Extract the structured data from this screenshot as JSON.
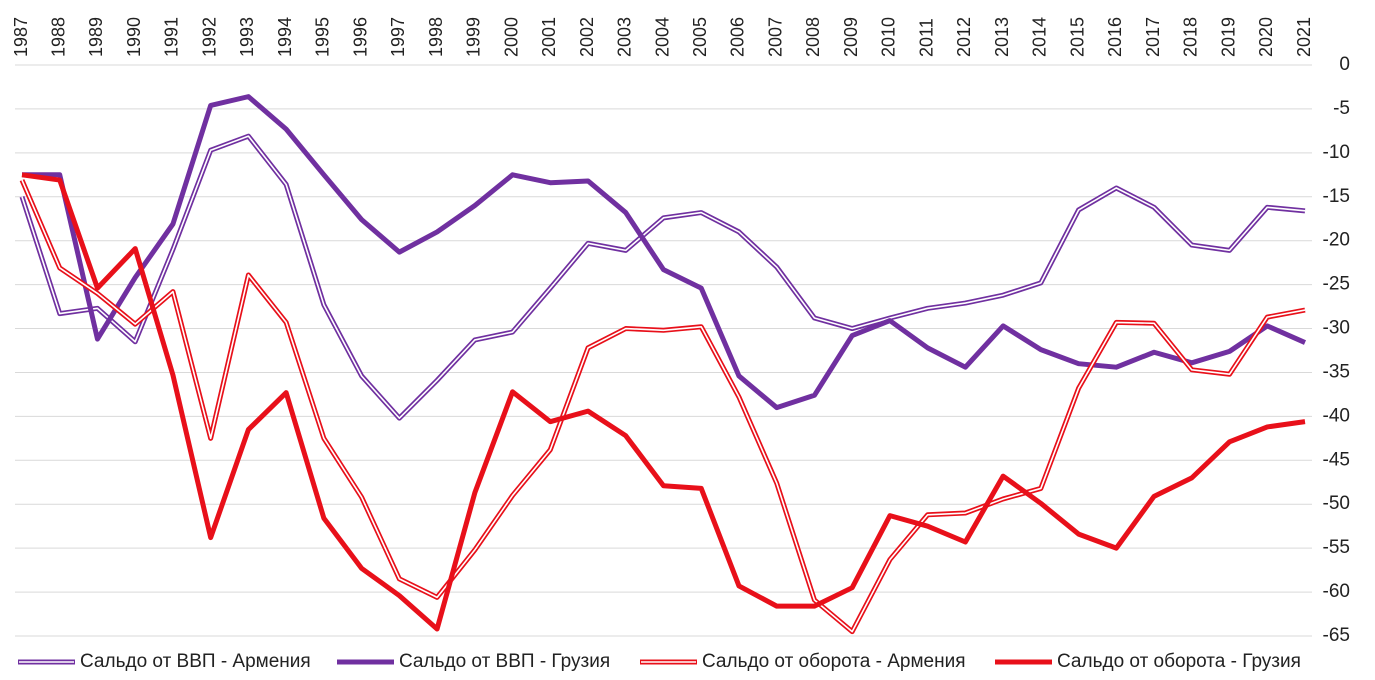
{
  "chart_data": {
    "type": "line",
    "x": [
      1987,
      1988,
      1989,
      1990,
      1991,
      1992,
      1993,
      1994,
      1995,
      1996,
      1997,
      1998,
      1999,
      2000,
      2001,
      2002,
      2003,
      2004,
      2005,
      2006,
      2007,
      2008,
      2009,
      2010,
      2011,
      2012,
      2013,
      2014,
      2015,
      2016,
      2017,
      2018,
      2019,
      2020,
      2021
    ],
    "series": [
      {
        "name": "Сальдо от ВВП - Армения",
        "color": "#7030a0",
        "double": true,
        "values": [
          -15,
          -28.3,
          -27.7,
          -31.5,
          -21,
          -9.7,
          -8.1,
          -13.6,
          -27.3,
          -35.4,
          -40.2,
          -35.9,
          -31.3,
          -30.4,
          -25.4,
          -20.3,
          -21.1,
          -17.4,
          -16.8,
          -19,
          -23,
          -28.8,
          -30,
          -28.8,
          -27.7,
          -27.1,
          -26.2,
          -24.8,
          -16.5,
          -14,
          -16.2,
          -20.5,
          -21.1,
          -16.2,
          -16.6
        ]
      },
      {
        "name": "Сальдо от ВВП - Грузия",
        "color": "#7030a0",
        "double": false,
        "values": [
          -12.5,
          -12.5,
          -31.2,
          -24.2,
          -18.1,
          -4.6,
          -3.6,
          -7.3,
          -12.5,
          -17.6,
          -21.3,
          -19,
          -16,
          -12.5,
          -13.4,
          -13.2,
          -16.8,
          -23.3,
          -25.4,
          -35.4,
          -39,
          -37.6,
          -30.8,
          -29.1,
          -32.2,
          -34.4,
          -29.7,
          -32.4,
          -34,
          -34.4,
          -32.7,
          -33.9,
          -32.6,
          -29.7,
          -31.6
        ]
      },
      {
        "name": "Сальдо от оборота - Армения",
        "color": "#e8101a",
        "double": true,
        "values": [
          -13.1,
          -23.1,
          -26,
          -29.5,
          -25.8,
          -42.5,
          -23.9,
          -29.3,
          -42.5,
          -49.2,
          -58.5,
          -60.6,
          -55.2,
          -49,
          -43.8,
          -32.2,
          -30,
          -30.2,
          -29.8,
          -37.8,
          -47.6,
          -60.9,
          -64.5,
          -56.3,
          -51.2,
          -51,
          -49.4,
          -48.2,
          -36.8,
          -29.3,
          -29.4,
          -34.7,
          -35.2,
          -28.7,
          -27.9
        ]
      },
      {
        "name": "Сальдо от оборота - Грузия",
        "color": "#e8101a",
        "double": false,
        "values": [
          -12.5,
          -13.1,
          -25.4,
          -20.9,
          -35.3,
          -53.8,
          -41.5,
          -37.3,
          -51.6,
          -57.3,
          -60.4,
          -64.2,
          -48.7,
          -37.2,
          -40.6,
          -39.4,
          -42.2,
          -47.9,
          -48.2,
          -59.3,
          -61.6,
          -61.6,
          -59.5,
          -51.3,
          -52.5,
          -54.3,
          -46.8,
          -49.9,
          -53.4,
          -55,
          -49.1,
          -47,
          -42.9,
          -41.2,
          -40.6
        ]
      }
    ],
    "xlim": [
      1987,
      2021
    ],
    "ylim": [
      -65,
      0
    ],
    "yticks": [
      0,
      -5,
      -10,
      -15,
      -20,
      -25,
      -30,
      -35,
      -40,
      -45,
      -50,
      -55,
      -60,
      -65
    ],
    "grid": true,
    "legend": "bottom"
  }
}
